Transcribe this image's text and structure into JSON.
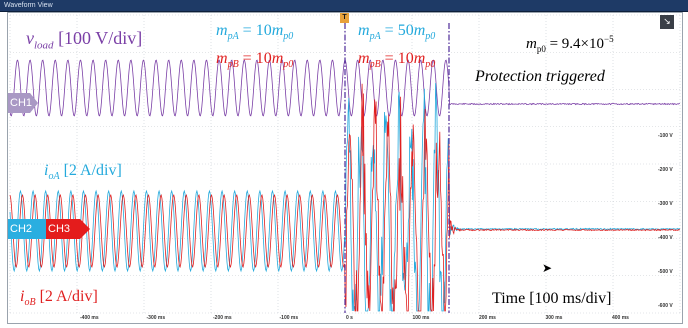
{
  "window": {
    "title": "Waveform View"
  },
  "colors": {
    "ch1": "#7a3fa6",
    "ch2": "#23a9dc",
    "ch3": "#e02020",
    "cursor": "#5a3aa0",
    "grid": "#c8ccd2",
    "ch1_marker": "#a998c4",
    "ch2_marker": "#2aaee0",
    "ch3_marker": "#e41c1c"
  },
  "labels": {
    "vload": {
      "sym": "v",
      "sub": "load",
      "scale": " [100 V/div]"
    },
    "ioA": {
      "sym": "i",
      "sub": "oA",
      "scale": " [2 A/div]"
    },
    "ioB": {
      "sym": "i",
      "sub": "oB",
      "scale": " [2 A/div]"
    },
    "mpA1": {
      "lhs": "m",
      "lhs_sub": "pA",
      "mid": " = 10",
      "rhs": "m",
      "rhs_sub": "p0"
    },
    "mpB1": {
      "lhs": "m",
      "lhs_sub": "pB",
      "mid": " = 10",
      "rhs": "m",
      "rhs_sub": "p0"
    },
    "mpA2": {
      "lhs": "m",
      "lhs_sub": "pA",
      "mid": " = 50",
      "rhs": "m",
      "rhs_sub": "p0"
    },
    "mpB2": {
      "lhs": "m",
      "lhs_sub": "pB",
      "mid": " = 10",
      "rhs": "m",
      "rhs_sub": "p0"
    },
    "mp0": {
      "lhs": "m",
      "lhs_sub": "p0",
      "mid": " = 9.4×10",
      "exp": "−5"
    },
    "protection": "Protection triggered",
    "time": "Time [100 ms/div]"
  },
  "channels": {
    "ch1": "CH1",
    "ch2": "CH2",
    "ch3": "CH3"
  },
  "time_axis": {
    "ticks": [
      "-400 ms",
      "-300 ms",
      "-200 ms",
      "-100 ms",
      "0 s",
      "100 ms",
      "200 ms",
      "300 ms",
      "400 ms"
    ]
  },
  "right_axis": {
    "ticks": [
      "-100 V",
      "-200 V",
      "-300 V",
      "-400 V",
      "-500 V",
      "-600 V"
    ]
  },
  "trigger_marker": "T"
}
